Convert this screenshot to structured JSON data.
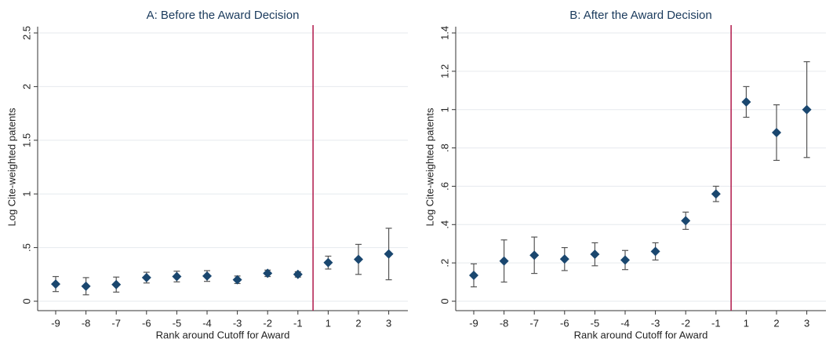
{
  "chart_data": [
    {
      "type": "scatter",
      "title": "A: Before the Award Decision",
      "x_label": "Rank around Cutoff for Award",
      "y_label": "Log Cite-weighted patents",
      "categories": [
        "-9",
        "-8",
        "-7",
        "-6",
        "-5",
        "-4",
        "-3",
        "-2",
        "-1",
        "1",
        "2",
        "3"
      ],
      "values": [
        0.16,
        0.14,
        0.155,
        0.22,
        0.23,
        0.235,
        0.2,
        0.26,
        0.25,
        0.36,
        0.39,
        0.44
      ],
      "errors": [
        0.07,
        0.08,
        0.07,
        0.05,
        0.05,
        0.05,
        0.035,
        0.03,
        0.025,
        0.06,
        0.14,
        0.24
      ],
      "color": "#1a476f",
      "error_color": "#555555",
      "cutoff_color": "#b0174a",
      "ylim": [
        0,
        2.5
      ],
      "yticks": [
        0,
        {
          "value": 0.5,
          "label": ".5"
        },
        1,
        1.5,
        2,
        2.5
      ],
      "grid": true
    },
    {
      "type": "scatter",
      "title": "B: After the Award Decision",
      "x_label": "Rank around Cutoff for Award",
      "y_label": "Log Cite-weighted patents",
      "categories": [
        "-9",
        "-8",
        "-7",
        "-6",
        "-5",
        "-4",
        "-3",
        "-2",
        "-1",
        "1",
        "2",
        "3"
      ],
      "values": [
        0.135,
        0.21,
        0.24,
        0.22,
        0.245,
        0.215,
        0.26,
        0.42,
        0.56,
        1.04,
        0.88,
        1.0
      ],
      "errors": [
        0.06,
        0.11,
        0.095,
        0.06,
        0.06,
        0.05,
        0.045,
        0.045,
        0.04,
        0.08,
        0.145,
        0.25
      ],
      "color": "#1a476f",
      "error_color": "#555555",
      "cutoff_color": "#b0174a",
      "ylim": [
        0,
        1.4
      ],
      "yticks": [
        0,
        {
          "value": 0.2,
          "label": ".2"
        },
        {
          "value": 0.4,
          "label": ".4"
        },
        {
          "value": 0.6,
          "label": ".6"
        },
        {
          "value": 0.8,
          "label": ".8"
        },
        1,
        1.2,
        1.4
      ],
      "grid": true
    }
  ]
}
